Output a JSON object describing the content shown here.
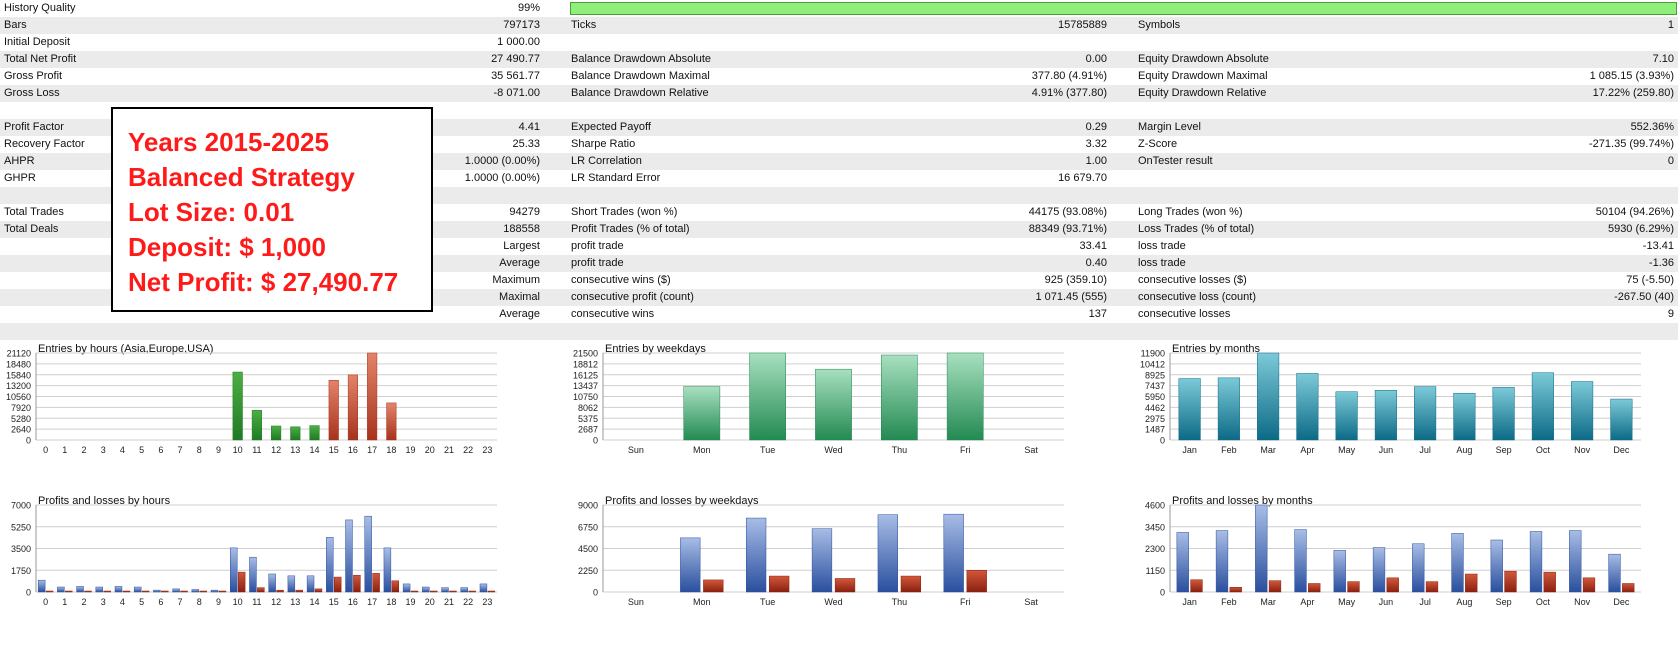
{
  "stats": {
    "history_quality": {
      "label": "History Quality",
      "value": "99%",
      "bar_fill": 1.0
    },
    "rows": [
      {
        "cells": [
          [
            "Bars",
            "797173"
          ],
          [
            "Ticks",
            "15785889"
          ],
          [
            "Symbols",
            "1"
          ]
        ]
      },
      {
        "cells": [
          [
            "Initial Deposit",
            "1 000.00"
          ]
        ]
      },
      {
        "cells": [
          [
            "Total Net Profit",
            "27 490.77"
          ],
          [
            "Balance Drawdown Absolute",
            "0.00"
          ],
          [
            "Equity Drawdown Absolute",
            "7.10"
          ]
        ]
      },
      {
        "cells": [
          [
            "Gross Profit",
            "35 561.77"
          ],
          [
            "Balance Drawdown Maximal",
            "377.80 (4.91%)"
          ],
          [
            "Equity Drawdown Maximal",
            "1 085.15 (3.93%)"
          ]
        ]
      },
      {
        "cells": [
          [
            "Gross Loss",
            "-8 071.00"
          ],
          [
            "Balance Drawdown Relative",
            "4.91% (377.80)"
          ],
          [
            "Equity Drawdown Relative",
            "17.22% (259.80)"
          ]
        ]
      },
      {
        "cells": []
      },
      {
        "cells": [
          [
            "Profit Factor",
            "4.41"
          ],
          [
            "Expected Payoff",
            "0.29"
          ],
          [
            "Margin Level",
            "552.36%"
          ]
        ]
      },
      {
        "cells": [
          [
            "Recovery Factor",
            "25.33"
          ],
          [
            "Sharpe Ratio",
            "3.32"
          ],
          [
            "Z-Score",
            "-271.35 (99.74%)"
          ]
        ]
      },
      {
        "cells": [
          [
            "AHPR",
            "1.0000 (0.00%)"
          ],
          [
            "LR Correlation",
            "1.00"
          ],
          [
            "OnTester result",
            "0"
          ]
        ]
      },
      {
        "cells": [
          [
            "GHPR",
            "1.0000 (0.00%)"
          ],
          [
            "LR Standard Error",
            "16 679.70"
          ]
        ]
      },
      {
        "cells": []
      },
      {
        "cells": [
          [
            "Total Trades",
            "94279"
          ],
          [
            "Short Trades (won %)",
            "44175 (93.08%)"
          ],
          [
            "Long Trades (won %)",
            "50104 (94.26%)"
          ]
        ]
      },
      {
        "cells": [
          [
            "Total Deals",
            "188558"
          ],
          [
            "Profit Trades (% of total)",
            "88349 (93.71%)"
          ],
          [
            "Loss Trades (% of total)",
            "5930 (6.29%)"
          ]
        ]
      },
      {
        "cells": [
          [
            "",
            "Largest"
          ],
          [
            "profit trade",
            "33.41"
          ],
          [
            "loss trade",
            "-13.41"
          ]
        ]
      },
      {
        "cells": [
          [
            "",
            "Average"
          ],
          [
            "profit trade",
            "0.40"
          ],
          [
            "loss trade",
            "-1.36"
          ]
        ]
      },
      {
        "cells": [
          [
            "",
            "Maximum"
          ],
          [
            "consecutive wins ($)",
            "925 (359.10)"
          ],
          [
            "consecutive losses ($)",
            "75 (-5.50)"
          ]
        ]
      },
      {
        "cells": [
          [
            "",
            "Maximal"
          ],
          [
            "consecutive profit (count)",
            "1 071.45 (555)"
          ],
          [
            "consecutive loss (count)",
            "-267.50 (40)"
          ]
        ]
      },
      {
        "cells": [
          [
            "",
            "Average"
          ],
          [
            "consecutive wins",
            "137"
          ],
          [
            "consecutive losses",
            "9"
          ]
        ]
      },
      {
        "cells": []
      }
    ]
  },
  "overlay": {
    "lines": [
      "Years 2015-2025",
      "Balanced Strategy",
      "Lot Size: 0.01",
      "Deposit: $ 1,000",
      "Net Profit: $ 27,490.77"
    ]
  },
  "colors": {
    "grid": "#cfcfcf",
    "green_dark": "#1e7a24",
    "green_light": "#4caf43",
    "red_dark": "#a8321e",
    "red_light": "#e2846a",
    "mint_dark": "#238a52",
    "mint_light": "#a8e0c0",
    "teal_dark": "#0c6a86",
    "teal_light": "#7ccad8",
    "blue_dark": "#2a4f9e",
    "blue_light": "#a8bde6",
    "loss_dark": "#8a2010",
    "loss_light": "#d2583a"
  },
  "chart_data": [
    {
      "type": "bar",
      "title": "Entries by hours (Asia,Europe,USA)",
      "categories": [
        "0",
        "1",
        "2",
        "3",
        "4",
        "5",
        "6",
        "7",
        "8",
        "9",
        "10",
        "11",
        "12",
        "13",
        "14",
        "15",
        "16",
        "17",
        "18",
        "19",
        "20",
        "21",
        "22",
        "23"
      ],
      "yticks": [
        "21120",
        "18480",
        "15840",
        "13200",
        "10560",
        "7920",
        "5280",
        "2640",
        "0"
      ],
      "ylim": [
        0,
        21120
      ],
      "values": [
        0,
        0,
        0,
        0,
        0,
        0,
        0,
        0,
        0,
        0,
        16500,
        7200,
        3400,
        3200,
        3500,
        14500,
        15800,
        21120,
        9000,
        0,
        0,
        0,
        0,
        0
      ],
      "colors": [
        "green",
        "green",
        "green",
        "green",
        "green",
        "green",
        "green",
        "green",
        "green",
        "green",
        "green",
        "green",
        "green",
        "green",
        "green",
        "red",
        "red",
        "red",
        "red",
        "red",
        "red",
        "red",
        "red",
        "red"
      ]
    },
    {
      "type": "bar",
      "title": "Entries by weekdays",
      "categories": [
        "Sun",
        "Mon",
        "Tue",
        "Wed",
        "Thu",
        "Fri",
        "Sat"
      ],
      "yticks": [
        "21500",
        "18812",
        "16125",
        "13437",
        "10750",
        "8062",
        "5375",
        "2687",
        "0"
      ],
      "ylim": [
        0,
        21500
      ],
      "values": [
        0,
        13200,
        21500,
        17500,
        21000,
        21500,
        0
      ],
      "colors": [
        "mint",
        "mint",
        "mint",
        "mint",
        "mint",
        "mint",
        "mint"
      ]
    },
    {
      "type": "bar",
      "title": "Entries by months",
      "categories": [
        "Jan",
        "Feb",
        "Mar",
        "Apr",
        "May",
        "Jun",
        "Jul",
        "Aug",
        "Sep",
        "Oct",
        "Nov",
        "Dec"
      ],
      "yticks": [
        "11900",
        "10412",
        "8925",
        "7437",
        "5950",
        "4462",
        "2975",
        "1487",
        "0"
      ],
      "ylim": [
        0,
        11900
      ],
      "values": [
        8400,
        8500,
        11900,
        9100,
        6600,
        6800,
        7300,
        6400,
        7200,
        9200,
        8000,
        5600
      ],
      "colors": [
        "teal",
        "teal",
        "teal",
        "teal",
        "teal",
        "teal",
        "teal",
        "teal",
        "teal",
        "teal",
        "teal",
        "teal"
      ]
    },
    {
      "type": "bar",
      "title": "Profits and losses by hours",
      "categories": [
        "0",
        "1",
        "2",
        "3",
        "4",
        "5",
        "6",
        "7",
        "8",
        "9",
        "10",
        "11",
        "12",
        "13",
        "14",
        "15",
        "16",
        "17",
        "18",
        "19",
        "20",
        "21",
        "22",
        "23"
      ],
      "yticks": [
        "7000",
        "5250",
        "3500",
        "1750",
        "0"
      ],
      "ylim": [
        0,
        7000
      ],
      "series": [
        {
          "name": "profit",
          "values": [
            950,
            400,
            450,
            400,
            450,
            400,
            150,
            250,
            200,
            150,
            3550,
            2800,
            1450,
            1300,
            1300,
            4400,
            5800,
            6100,
            3550,
            650,
            400,
            350,
            350,
            650
          ]
        },
        {
          "name": "loss",
          "values": [
            50,
            30,
            30,
            30,
            30,
            30,
            20,
            20,
            20,
            20,
            1600,
            350,
            150,
            150,
            250,
            1200,
            1350,
            1500,
            900,
            80,
            50,
            50,
            50,
            80
          ]
        }
      ]
    },
    {
      "type": "bar",
      "title": "Profits and losses by weekdays",
      "categories": [
        "Sun",
        "Mon",
        "Tue",
        "Wed",
        "Thu",
        "Fri",
        "Sat"
      ],
      "yticks": [
        "9000",
        "6750",
        "4500",
        "2250",
        "0"
      ],
      "ylim": [
        0,
        9000
      ],
      "series": [
        {
          "name": "profit",
          "values": [
            0,
            5600,
            7650,
            6550,
            8000,
            8050,
            0
          ]
        },
        {
          "name": "loss",
          "values": [
            0,
            1250,
            1650,
            1400,
            1650,
            2250,
            0
          ]
        }
      ]
    },
    {
      "type": "bar",
      "title": "Profits and losses by months",
      "categories": [
        "Jan",
        "Feb",
        "Mar",
        "Apr",
        "May",
        "Jun",
        "Jul",
        "Aug",
        "Sep",
        "Oct",
        "Nov",
        "Dec"
      ],
      "yticks": [
        "4600",
        "3450",
        "2300",
        "1150",
        "0"
      ],
      "ylim": [
        0,
        4600
      ],
      "series": [
        {
          "name": "profit",
          "values": [
            3150,
            3250,
            4600,
            3300,
            2200,
            2350,
            2550,
            3100,
            2750,
            3200,
            3250,
            2000
          ]
        },
        {
          "name": "loss",
          "values": [
            650,
            250,
            600,
            450,
            550,
            750,
            550,
            950,
            1100,
            1050,
            750,
            450
          ]
        }
      ]
    }
  ]
}
